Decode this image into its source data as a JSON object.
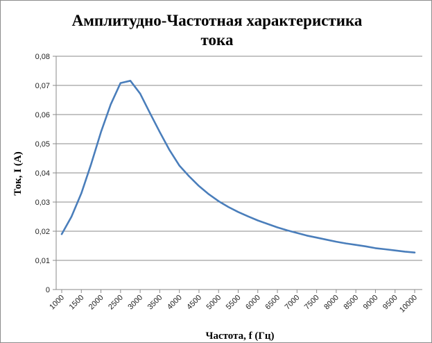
{
  "chart_data": {
    "type": "line",
    "title": "Амплитудно-Частотная характеристика тока",
    "title_lines": [
      "Амплитудно-Частотная характеристика",
      "тока"
    ],
    "xlabel": "Частота, f (Гц)",
    "ylabel": "Ток, I (А)",
    "categories": [
      "1000",
      "1500",
      "2000",
      "2500",
      "3000",
      "3500",
      "4000",
      "4500",
      "5000",
      "5500",
      "6000",
      "6500",
      "7000",
      "7500",
      "8000",
      "8500",
      "9000",
      "9500",
      "10000"
    ],
    "y_tick_labels": [
      "0",
      "0,01",
      "0,02",
      "0,03",
      "0,04",
      "0,05",
      "0,06",
      "0,07",
      "0,08"
    ],
    "ylim": [
      0,
      0.08
    ],
    "grid": true,
    "legend": "none",
    "line_color": "#4a7ebb",
    "series": [
      {
        "x": [
          1000,
          1250,
          1500,
          1750,
          2000,
          2250,
          2500,
          2750,
          3000,
          3250,
          3500,
          3750,
          4000,
          4250,
          4500,
          4750,
          5000,
          5250,
          5500,
          5750,
          6000,
          6250,
          6500,
          6750,
          7000,
          7250,
          7500,
          7750,
          8000,
          8250,
          8500,
          8750,
          9000,
          9250,
          9500,
          9750,
          10000
        ],
        "values": [
          0.019,
          0.025,
          0.033,
          0.043,
          0.054,
          0.0635,
          0.0708,
          0.0716,
          0.0672,
          0.0605,
          0.054,
          0.0478,
          0.0425,
          0.0388,
          0.0355,
          0.0327,
          0.0303,
          0.0283,
          0.0266,
          0.0251,
          0.0237,
          0.0225,
          0.0213,
          0.0203,
          0.0194,
          0.0185,
          0.0178,
          0.0171,
          0.0164,
          0.0158,
          0.0153,
          0.0148,
          0.0142,
          0.0138,
          0.0134,
          0.013,
          0.0127
        ]
      }
    ]
  }
}
